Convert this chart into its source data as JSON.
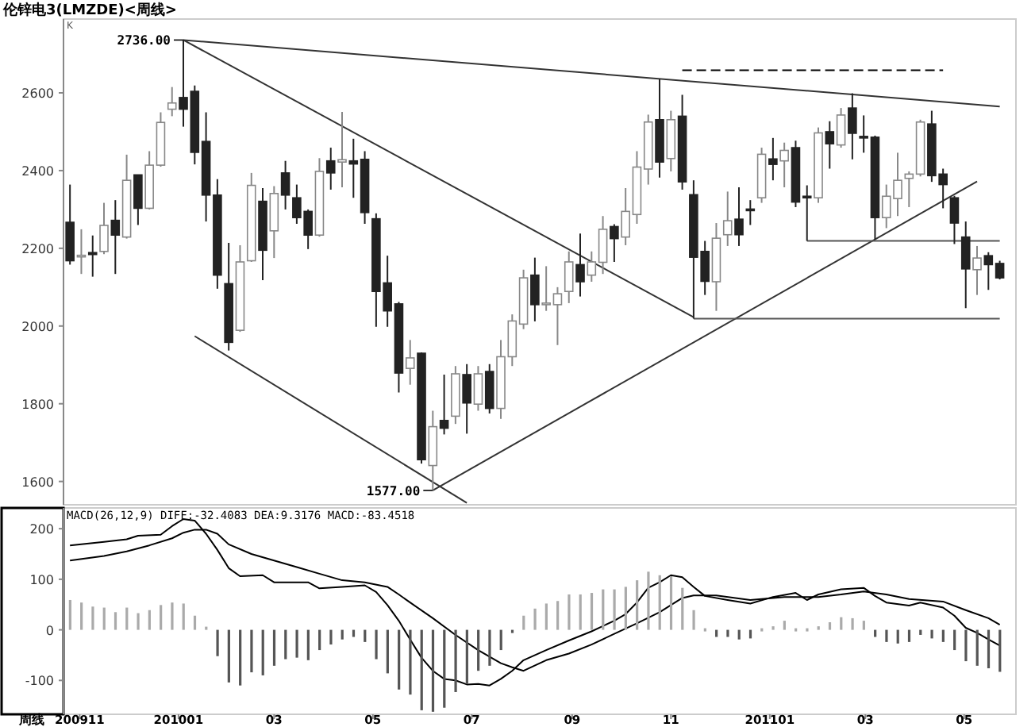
{
  "chart_data": [
    {
      "type": "candlestick",
      "title": "伦锌电3(LMZDE)<周线>",
      "x": [
        "2009-10-26",
        "2009-11-02",
        "2009-11-09",
        "2009-11-16",
        "2009-11-23",
        "2009-11-30",
        "2009-12-07",
        "2009-12-14",
        "2009-12-21",
        "2009-12-28",
        "2010-01-04",
        "2010-01-11",
        "2010-01-18",
        "2010-01-25",
        "2010-02-01",
        "2010-02-08",
        "2010-02-15",
        "2010-02-22",
        "2010-03-01",
        "2010-03-08",
        "2010-03-15",
        "2010-03-22",
        "2010-03-29",
        "2010-04-05",
        "2010-04-12",
        "2010-04-19",
        "2010-04-26",
        "2010-05-03",
        "2010-05-10",
        "2010-05-17",
        "2010-05-24",
        "2010-05-31",
        "2010-06-07",
        "2010-06-14",
        "2010-06-21",
        "2010-06-28",
        "2010-07-05",
        "2010-07-12",
        "2010-07-19",
        "2010-07-26",
        "2010-08-02",
        "2010-08-09",
        "2010-08-16",
        "2010-08-23",
        "2010-08-30",
        "2010-09-06",
        "2010-09-13",
        "2010-09-20",
        "2010-09-27",
        "2010-10-04",
        "2010-10-11",
        "2010-10-18",
        "2010-10-25",
        "2010-11-01",
        "2010-11-08",
        "2010-11-15",
        "2010-11-22",
        "2010-11-29",
        "2010-12-06",
        "2010-12-13",
        "2010-12-20",
        "2010-12-27",
        "2011-01-03",
        "2011-01-10",
        "2011-01-17",
        "2011-01-24",
        "2011-01-31",
        "2011-02-07",
        "2011-02-14",
        "2011-02-21",
        "2011-02-28",
        "2011-03-07",
        "2011-03-14",
        "2011-03-21",
        "2011-03-28",
        "2011-04-04",
        "2011-04-11",
        "2011-04-18",
        "2011-04-25",
        "2011-05-02",
        "2011-05-09",
        "2011-05-16",
        "2011-05-23"
      ],
      "ohlc": [
        [
          2267,
          2364,
          2158,
          2168
        ],
        [
          2178,
          2249,
          2134,
          2182
        ],
        [
          2189,
          2233,
          2127,
          2184
        ],
        [
          2192,
          2317,
          2185,
          2259
        ],
        [
          2272,
          2324,
          2134,
          2234
        ],
        [
          2229,
          2441,
          2225,
          2375
        ],
        [
          2389,
          2389,
          2260,
          2303
        ],
        [
          2303,
          2450,
          2300,
          2414
        ],
        [
          2414,
          2550,
          2410,
          2524
        ],
        [
          2558,
          2615,
          2540,
          2574
        ],
        [
          2588,
          2736,
          2513,
          2558
        ],
        [
          2604,
          2619,
          2416,
          2447
        ],
        [
          2475,
          2550,
          2269,
          2337
        ],
        [
          2337,
          2378,
          2096,
          2131
        ],
        [
          2109,
          2214,
          1937,
          1958
        ],
        [
          1989,
          2208,
          1985,
          2165
        ],
        [
          2168,
          2394,
          2165,
          2362
        ],
        [
          2321,
          2355,
          2118,
          2195
        ],
        [
          2245,
          2360,
          2175,
          2341
        ],
        [
          2394,
          2425,
          2300,
          2337
        ],
        [
          2330,
          2364,
          2263,
          2279
        ],
        [
          2295,
          2300,
          2198,
          2234
        ],
        [
          2234,
          2432,
          2230,
          2398
        ],
        [
          2425,
          2459,
          2351,
          2394
        ],
        [
          2422,
          2551,
          2357,
          2428
        ],
        [
          2425,
          2482,
          2330,
          2417
        ],
        [
          2429,
          2450,
          2263,
          2292
        ],
        [
          2276,
          2290,
          1998,
          2089
        ],
        [
          2111,
          2181,
          1998,
          2039
        ],
        [
          2057,
          2062,
          1829,
          1879
        ],
        [
          1891,
          1964,
          1849,
          1918
        ],
        [
          1930,
          1932,
          1646,
          1656
        ],
        [
          1641,
          1782,
          1577,
          1741
        ],
        [
          1757,
          1875,
          1721,
          1737
        ],
        [
          1768,
          1897,
          1748,
          1877
        ],
        [
          1875,
          1902,
          1723,
          1802
        ],
        [
          1799,
          1897,
          1782,
          1877
        ],
        [
          1883,
          1902,
          1775,
          1788
        ],
        [
          1788,
          1964,
          1761,
          1921
        ],
        [
          1921,
          2030,
          1897,
          2013
        ],
        [
          2005,
          2145,
          1992,
          2124
        ],
        [
          2131,
          2176,
          2012,
          2055
        ],
        [
          2057,
          2154,
          2039,
          2059
        ],
        [
          2055,
          2100,
          1951,
          2083
        ],
        [
          2089,
          2192,
          2059,
          2165
        ],
        [
          2158,
          2238,
          2076,
          2114
        ],
        [
          2131,
          2192,
          2114,
          2165
        ],
        [
          2164,
          2283,
          2134,
          2249
        ],
        [
          2256,
          2262,
          2165,
          2225
        ],
        [
          2229,
          2355,
          2208,
          2295
        ],
        [
          2287,
          2450,
          2263,
          2409
        ],
        [
          2404,
          2544,
          2364,
          2525
        ],
        [
          2531,
          2635,
          2382,
          2422
        ],
        [
          2431,
          2554,
          2398,
          2531
        ],
        [
          2540,
          2595,
          2351,
          2371
        ],
        [
          2338,
          2375,
          2019,
          2177
        ],
        [
          2192,
          2219,
          2080,
          2115
        ],
        [
          2114,
          2265,
          2039,
          2226
        ],
        [
          2235,
          2346,
          2206,
          2271
        ],
        [
          2275,
          2357,
          2206,
          2235
        ],
        [
          2301,
          2324,
          2260,
          2299
        ],
        [
          2330,
          2459,
          2317,
          2442
        ],
        [
          2430,
          2484,
          2375,
          2416
        ],
        [
          2425,
          2472,
          2357,
          2452
        ],
        [
          2459,
          2477,
          2306,
          2319
        ],
        [
          2334,
          2362,
          2219,
          2332
        ],
        [
          2330,
          2511,
          2317,
          2497
        ],
        [
          2500,
          2527,
          2405,
          2469
        ],
        [
          2466,
          2561,
          2459,
          2543
        ],
        [
          2561,
          2599,
          2429,
          2496
        ],
        [
          2488,
          2542,
          2446,
          2484
        ],
        [
          2486,
          2490,
          2222,
          2279
        ],
        [
          2279,
          2364,
          2252,
          2334
        ],
        [
          2328,
          2446,
          2283,
          2375
        ],
        [
          2380,
          2398,
          2306,
          2391
        ],
        [
          2391,
          2531,
          2385,
          2525
        ],
        [
          2520,
          2554,
          2371,
          2387
        ],
        [
          2391,
          2405,
          2303,
          2364
        ],
        [
          2330,
          2335,
          2211,
          2265
        ],
        [
          2229,
          2269,
          2046,
          2147
        ],
        [
          2145,
          2206,
          2080,
          2175
        ],
        [
          2181,
          2190,
          2093,
          2158
        ],
        [
          2161,
          2168,
          2120,
          2124
        ]
      ],
      "series": [
        {
          "type": "line",
          "x": [
            "2010-01-04",
            "2011-05-23"
          ],
          "values": [
            2736,
            2565
          ],
          "color": "#333333"
        },
        {
          "type": "line",
          "x": [
            "2010-01-04",
            "2010-11-15"
          ],
          "values": [
            2736,
            2023
          ],
          "color": "#333333"
        },
        {
          "type": "line",
          "x": [
            "2010-01-11",
            "2010-06-28"
          ],
          "values": [
            1974,
            1545
          ],
          "color": "#333333"
        },
        {
          "type": "line",
          "x": [
            "2010-06-07",
            "2011-05-09"
          ],
          "values": [
            1577,
            2372
          ],
          "color": "#333333"
        },
        {
          "type": "line",
          "x": [
            "2010-11-15",
            "2011-05-23"
          ],
          "values": [
            2019,
            2019
          ],
          "color": "#555555"
        },
        {
          "type": "line",
          "x": [
            "2011-01-24",
            "2011-05-23"
          ],
          "values": [
            2219,
            2219
          ],
          "color": "#555555"
        },
        {
          "type": "line",
          "x": [
            "2010-11-08",
            "2011-04-18"
          ],
          "values": [
            2658,
            2658
          ],
          "color": "#000000",
          "line_style": "dashed"
        }
      ],
      "xlim": [
        "2009-10-22",
        "2011-06-02"
      ],
      "ylim": [
        1540,
        2790
      ],
      "yticks": [
        1600,
        1800,
        2000,
        2200,
        2400,
        2600
      ],
      "tick_labels": "y",
      "annotations": [
        "K",
        {
          "text": "2736.00",
          "x": "2010-01-04",
          "y": 2736
        },
        {
          "text": "1577.00",
          "x": "2010-06-07",
          "y": 1577
        }
      ]
    },
    {
      "type": "bar",
      "title": "MACD(26,12,9) DIFF:-32.4083 DEA:9.3176 MACD:-83.4518",
      "x": [
        "2009-10-26",
        "2009-11-02",
        "2009-11-09",
        "2009-11-16",
        "2009-11-23",
        "2009-11-30",
        "2009-12-07",
        "2009-12-14",
        "2009-12-21",
        "2009-12-28",
        "2010-01-04",
        "2010-01-11",
        "2010-01-18",
        "2010-01-25",
        "2010-02-01",
        "2010-02-08",
        "2010-02-15",
        "2010-02-22",
        "2010-03-01",
        "2010-03-08",
        "2010-03-15",
        "2010-03-22",
        "2010-03-29",
        "2010-04-05",
        "2010-04-12",
        "2010-04-19",
        "2010-04-26",
        "2010-05-03",
        "2010-05-10",
        "2010-05-17",
        "2010-05-24",
        "2010-05-31",
        "2010-06-07",
        "2010-06-14",
        "2010-06-21",
        "2010-06-28",
        "2010-07-05",
        "2010-07-12",
        "2010-07-19",
        "2010-07-26",
        "2010-08-02",
        "2010-08-09",
        "2010-08-16",
        "2010-08-23",
        "2010-08-30",
        "2010-09-06",
        "2010-09-13",
        "2010-09-20",
        "2010-09-27",
        "2010-10-04",
        "2010-10-11",
        "2010-10-18",
        "2010-10-25",
        "2010-11-01",
        "2010-11-08",
        "2010-11-15",
        "2010-11-22",
        "2010-11-29",
        "2010-12-06",
        "2010-12-13",
        "2010-12-20",
        "2010-12-27",
        "2011-01-03",
        "2011-01-10",
        "2011-01-17",
        "2011-01-24",
        "2011-01-31",
        "2011-02-07",
        "2011-02-14",
        "2011-02-21",
        "2011-02-28",
        "2011-03-07",
        "2011-03-14",
        "2011-03-21",
        "2011-03-28",
        "2011-04-04",
        "2011-04-11",
        "2011-04-18",
        "2011-04-25",
        "2011-05-02",
        "2011-05-09",
        "2011-05-16",
        "2011-05-23"
      ],
      "series": [
        {
          "type": "bar",
          "values": [
            59,
            54,
            46,
            44,
            35,
            44,
            33,
            39,
            49,
            54,
            52,
            28,
            3,
            -52,
            -104,
            -110,
            -84,
            -90,
            -71,
            -58,
            -55,
            -60,
            -40,
            -29,
            -19,
            -14,
            -24,
            -58,
            -86,
            -118,
            -128,
            -159,
            -162,
            -154,
            -123,
            -107,
            -81,
            -71,
            -40,
            -6,
            28,
            42,
            52,
            57,
            70,
            70,
            73,
            80,
            80,
            85,
            98,
            115,
            108,
            106,
            83,
            39,
            0,
            -14,
            -14,
            -19,
            -17,
            0,
            7,
            18,
            0,
            0,
            7,
            15,
            25,
            23,
            18,
            -14,
            -24,
            -27,
            -24,
            -10,
            -17,
            -24,
            -40,
            -62,
            -71,
            -76,
            -83
          ],
          "colors": [
            "#aaaaaa",
            "#aaaaaa",
            "#aaaaaa",
            "#aaaaaa",
            "#aaaaaa",
            "#aaaaaa",
            "#aaaaaa",
            "#aaaaaa",
            "#aaaaaa",
            "#aaaaaa",
            "#aaaaaa",
            "#aaaaaa",
            "#aaaaaa",
            "#555555",
            "#555555",
            "#555555",
            "#555555",
            "#555555",
            "#555555",
            "#555555",
            "#555555",
            "#555555",
            "#555555",
            "#555555",
            "#555555",
            "#555555",
            "#555555",
            "#555555",
            "#555555",
            "#555555",
            "#555555",
            "#555555",
            "#555555",
            "#555555",
            "#555555",
            "#555555",
            "#555555",
            "#555555",
            "#555555",
            "#555555",
            "#aaaaaa",
            "#aaaaaa",
            "#aaaaaa",
            "#aaaaaa",
            "#aaaaaa",
            "#aaaaaa",
            "#aaaaaa",
            "#aaaaaa",
            "#aaaaaa",
            "#aaaaaa",
            "#aaaaaa",
            "#aaaaaa",
            "#aaaaaa",
            "#aaaaaa",
            "#aaaaaa",
            "#aaaaaa",
            "#aaaaaa",
            "#555555",
            "#555555",
            "#555555",
            "#555555",
            "#aaaaaa",
            "#aaaaaa",
            "#aaaaaa",
            "#aaaaaa",
            "#aaaaaa",
            "#aaaaaa",
            "#aaaaaa",
            "#aaaaaa",
            "#aaaaaa",
            "#aaaaaa",
            "#555555",
            "#555555",
            "#555555",
            "#555555",
            "#555555",
            "#555555",
            "#555555",
            "#555555",
            "#555555",
            "#555555",
            "#555555",
            "#555555"
          ]
        },
        {
          "type": "line",
          "color": "#000000",
          "x": [
            "2009-10-26",
            "2009-11-16",
            "2009-11-30",
            "2009-12-07",
            "2009-12-21",
            "2009-12-28",
            "2010-01-04",
            "2010-01-11",
            "2010-01-18",
            "2010-01-25",
            "2010-02-01",
            "2010-02-08",
            "2010-02-22",
            "2010-03-01",
            "2010-03-22",
            "2010-03-29",
            "2010-04-12",
            "2010-04-26",
            "2010-05-03",
            "2010-05-10",
            "2010-05-17",
            "2010-05-24",
            "2010-05-31",
            "2010-06-07",
            "2010-06-14",
            "2010-06-21",
            "2010-06-28",
            "2010-07-05",
            "2010-07-12",
            "2010-07-19",
            "2010-07-26",
            "2010-08-02",
            "2010-08-16",
            "2010-08-30",
            "2010-09-13",
            "2010-09-27",
            "2010-10-04",
            "2010-10-11",
            "2010-10-18",
            "2010-10-25",
            "2010-11-01",
            "2010-11-08",
            "2010-11-15",
            "2010-11-22",
            "2010-12-06",
            "2010-12-20",
            "2011-01-03",
            "2011-01-17",
            "2011-01-24",
            "2011-01-31",
            "2011-02-14",
            "2011-02-28",
            "2011-03-07",
            "2011-03-14",
            "2011-03-28",
            "2011-04-04",
            "2011-04-18",
            "2011-04-25",
            "2011-05-02",
            "2011-05-09",
            "2011-05-16",
            "2011-05-23"
          ],
          "values": [
            167,
            174,
            179,
            186,
            188,
            205,
            219,
            216,
            190,
            158,
            122,
            106,
            108,
            94,
            94,
            82,
            85,
            88,
            75,
            49,
            18,
            -19,
            -55,
            -81,
            -97,
            -100,
            -108,
            -107,
            -110,
            -97,
            -81,
            -60,
            -40,
            -21,
            -3,
            18,
            31,
            54,
            83,
            94,
            108,
            104,
            85,
            67,
            59,
            52,
            65,
            73,
            59,
            70,
            80,
            83,
            67,
            54,
            48,
            54,
            44,
            28,
            4,
            -6,
            -19,
            -31
          ]
        },
        {
          "type": "line",
          "color": "#000000",
          "x": [
            "2009-10-26",
            "2009-11-16",
            "2009-11-30",
            "2009-12-14",
            "2009-12-28",
            "2010-01-04",
            "2010-01-11",
            "2010-01-18",
            "2010-01-25",
            "2010-02-01",
            "2010-02-15",
            "2010-03-01",
            "2010-03-15",
            "2010-03-29",
            "2010-04-12",
            "2010-04-26",
            "2010-05-10",
            "2010-05-17",
            "2010-05-24",
            "2010-06-07",
            "2010-06-21",
            "2010-07-05",
            "2010-07-19",
            "2010-07-26",
            "2010-08-02",
            "2010-08-16",
            "2010-08-30",
            "2010-09-13",
            "2010-09-27",
            "2010-10-11",
            "2010-10-25",
            "2010-11-01",
            "2010-11-08",
            "2010-11-15",
            "2010-11-29",
            "2010-12-20",
            "2011-01-10",
            "2011-01-31",
            "2011-02-14",
            "2011-02-28",
            "2011-03-14",
            "2011-03-28",
            "2011-04-18",
            "2011-05-02",
            "2011-05-16",
            "2011-05-23"
          ],
          "values": [
            137,
            146,
            155,
            167,
            181,
            192,
            198,
            198,
            190,
            169,
            150,
            137,
            124,
            111,
            98,
            94,
            85,
            70,
            54,
            23,
            -10,
            -40,
            -66,
            -74,
            -81,
            -60,
            -47,
            -29,
            -8,
            13,
            35,
            49,
            63,
            68,
            68,
            59,
            65,
            65,
            70,
            76,
            70,
            61,
            56,
            39,
            23,
            10
          ]
        }
      ],
      "xlim": [
        "2009-10-22",
        "2011-06-02"
      ],
      "ylim": [
        -167,
        241
      ],
      "yticks": [
        -100,
        0,
        100,
        200
      ],
      "xticks": [
        {
          "value": "2009-11-01",
          "label": "200911"
        },
        {
          "value": "2010-01-01",
          "label": "201001"
        },
        {
          "value": "2010-03-01",
          "label": "03"
        },
        {
          "value": "2010-05-01",
          "label": "05"
        },
        {
          "value": "2010-07-01",
          "label": "07"
        },
        {
          "value": "2010-09-01",
          "label": "09"
        },
        {
          "value": "2010-11-01",
          "label": "11"
        },
        {
          "value": "2011-01-01",
          "label": "201101"
        },
        {
          "value": "2011-03-01",
          "label": "03"
        },
        {
          "value": "2011-05-01",
          "label": "05"
        }
      ],
      "annotations": [
        "周线"
      ]
    }
  ]
}
